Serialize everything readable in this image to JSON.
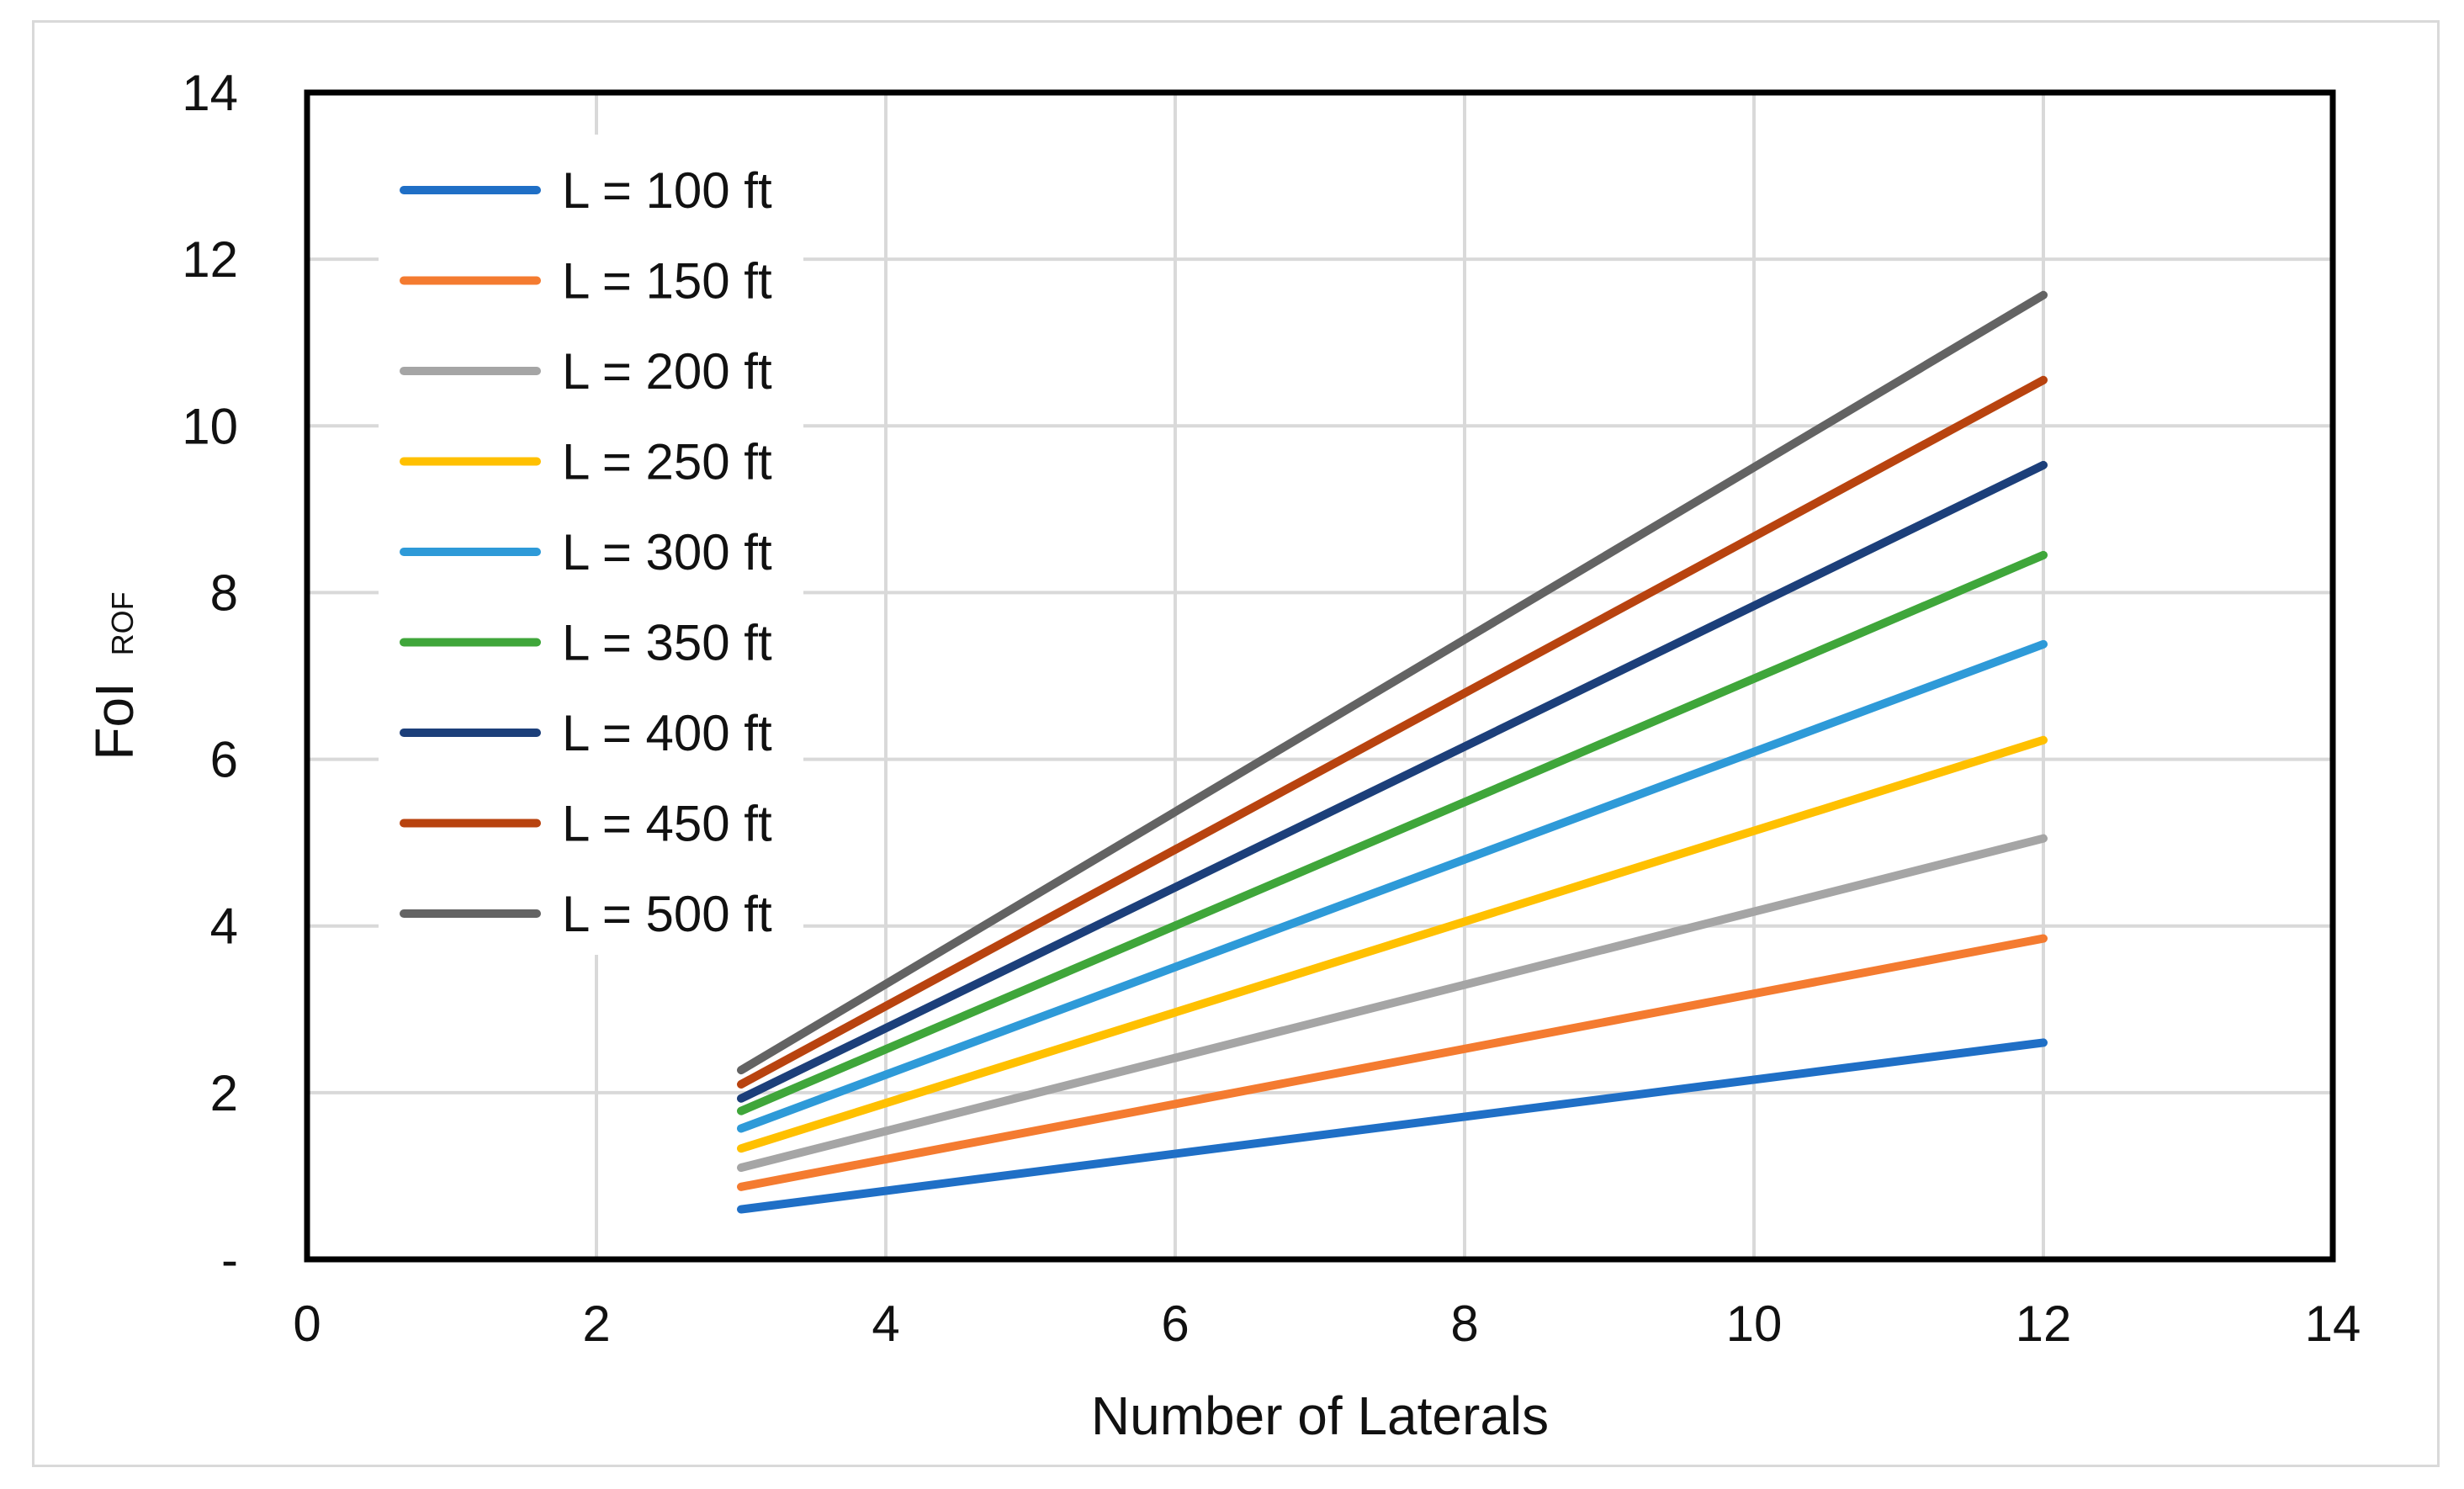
{
  "chart_data": {
    "type": "line",
    "title": "",
    "xlabel": "Number of Laterals",
    "ylabel": "FoI",
    "ylabel_subscript": "ROF",
    "xlim": [
      0,
      14
    ],
    "ylim": [
      0,
      14
    ],
    "x_ticks": [
      0,
      2,
      4,
      6,
      8,
      10,
      12,
      14
    ],
    "y_ticks": [
      0,
      2,
      4,
      6,
      8,
      10,
      12,
      14
    ],
    "x_tick_labels": [
      "0",
      "2",
      "4",
      "6",
      "8",
      "10",
      "12",
      "14"
    ],
    "y_tick_labels": [
      "-",
      "2",
      "4",
      "6",
      "8",
      "10",
      "12",
      "14"
    ],
    "grid": true,
    "legend_position": "top-left",
    "x": [
      3,
      12
    ],
    "series": [
      {
        "name": "L = 100 ft",
        "color": "#1f6fc6",
        "values": [
          0.6,
          2.6
        ]
      },
      {
        "name": "L = 150 ft",
        "color": "#f47b30",
        "values": [
          0.87,
          3.85
        ]
      },
      {
        "name": "L = 200 ft",
        "color": "#a5a5a5",
        "values": [
          1.1,
          5.05
        ]
      },
      {
        "name": "L = 250 ft",
        "color": "#ffc000",
        "values": [
          1.33,
          6.23
        ]
      },
      {
        "name": "L = 300 ft",
        "color": "#2e9ad8",
        "values": [
          1.57,
          7.38
        ]
      },
      {
        "name": "L = 350 ft",
        "color": "#3fa63a",
        "values": [
          1.78,
          8.45
        ]
      },
      {
        "name": "L = 400 ft",
        "color": "#1c3f7a",
        "values": [
          1.93,
          9.53
        ]
      },
      {
        "name": "L = 450 ft",
        "color": "#b8430f",
        "values": [
          2.1,
          10.55
        ]
      },
      {
        "name": "L = 500 ft",
        "color": "#636363",
        "values": [
          2.27,
          11.57
        ]
      }
    ]
  }
}
